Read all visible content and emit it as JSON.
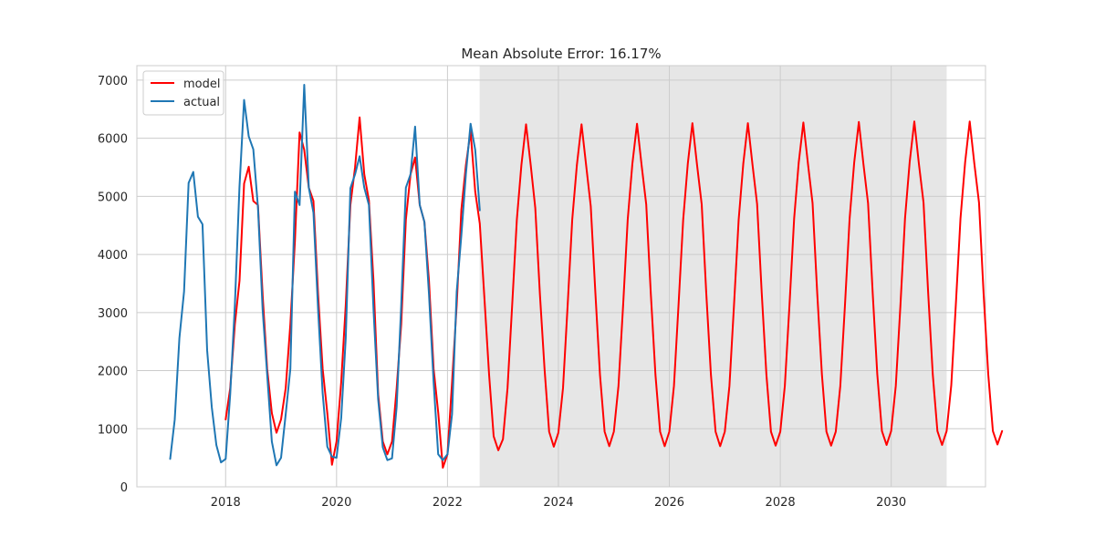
{
  "chart_data": {
    "type": "line",
    "title": "Mean Absolute Error: 16.17%",
    "xlabel": "",
    "ylabel": "",
    "xlim": [
      2016.4,
      2031.7
    ],
    "ylim": [
      0,
      7250
    ],
    "xticks": [
      2018,
      2020,
      2022,
      2024,
      2026,
      2028,
      2030
    ],
    "xtick_labels": [
      "2018",
      "2020",
      "2022",
      "2024",
      "2026",
      "2028",
      "2030"
    ],
    "yticks": [
      0,
      1000,
      2000,
      3000,
      4000,
      5000,
      6000,
      7000
    ],
    "ytick_labels": [
      "0",
      "1000",
      "2000",
      "3000",
      "4000",
      "5000",
      "6000",
      "7000"
    ],
    "grid": true,
    "legend_position": "top-left",
    "forecast_region": {
      "x_start": 2022.58,
      "x_end": 2031.0,
      "color": "#e6e6e6"
    },
    "series": [
      {
        "name": "model",
        "color": "#ff0000",
        "x_start": 2018.0,
        "x_step": 0.08333,
        "values": [
          1160,
          1700,
          2800,
          3550,
          5220,
          5510,
          4920,
          4850,
          3310,
          2030,
          1270,
          930,
          1160,
          1700,
          2800,
          4230,
          6100,
          5800,
          5150,
          4920,
          3310,
          2030,
          1270,
          380,
          780,
          1800,
          3130,
          4850,
          5500,
          6360,
          5380,
          4930,
          3550,
          1600,
          780,
          560,
          780,
          1700,
          2800,
          4600,
          5380,
          5670,
          4850,
          4560,
          3550,
          2030,
          1270,
          330,
          560,
          1800,
          3130,
          4770,
          5540,
          6120,
          5080,
          4530,
          3240,
          1930,
          870,
          630,
          820,
          1700,
          3130,
          4600,
          5540,
          6240,
          5540,
          4800,
          3310,
          2020,
          950,
          690,
          930,
          1700,
          3130,
          4600,
          5540,
          6240,
          5540,
          4830,
          3330,
          1930,
          950,
          700,
          950,
          1740,
          3130,
          4600,
          5560,
          6250,
          5540,
          4860,
          3330,
          1930,
          950,
          700,
          950,
          1740,
          3130,
          4600,
          5570,
          6260,
          5540,
          4860,
          3330,
          1930,
          950,
          700,
          950,
          1740,
          3130,
          4600,
          5570,
          6260,
          5540,
          4870,
          3330,
          1930,
          950,
          710,
          950,
          1740,
          3130,
          4620,
          5580,
          6270,
          5550,
          4880,
          3330,
          1940,
          950,
          710,
          950,
          1740,
          3130,
          4620,
          5580,
          6280,
          5560,
          4880,
          3330,
          1940,
          960,
          720,
          960,
          1740,
          3130,
          4620,
          5590,
          6290,
          5560,
          4890,
          3330,
          1940,
          960,
          720,
          960,
          1750,
          3140,
          4620,
          5590,
          6290,
          5560,
          4890,
          3330,
          1940,
          960,
          730,
          960
        ]
      },
      {
        "name": "actual",
        "color": "#1f77b4",
        "x_start": 2017.0,
        "x_step": 0.08333,
        "values": [
          480,
          1160,
          2560,
          3360,
          5230,
          5420,
          4650,
          4520,
          2350,
          1370,
          720,
          420,
          480,
          1600,
          3130,
          5150,
          6660,
          6030,
          5810,
          4810,
          3050,
          1930,
          780,
          370,
          500,
          1250,
          2030,
          5080,
          4850,
          6920,
          5150,
          4720,
          3050,
          1610,
          690,
          520,
          500,
          1180,
          2560,
          5140,
          5380,
          5690,
          5150,
          4850,
          3060,
          1510,
          680,
          460,
          490,
          1380,
          3130,
          5150,
          5380,
          6200,
          4850,
          4560,
          3320,
          1800,
          560,
          460,
          560,
          1250,
          3360,
          4330,
          5390,
          6250,
          5800,
          4760
        ]
      }
    ]
  }
}
